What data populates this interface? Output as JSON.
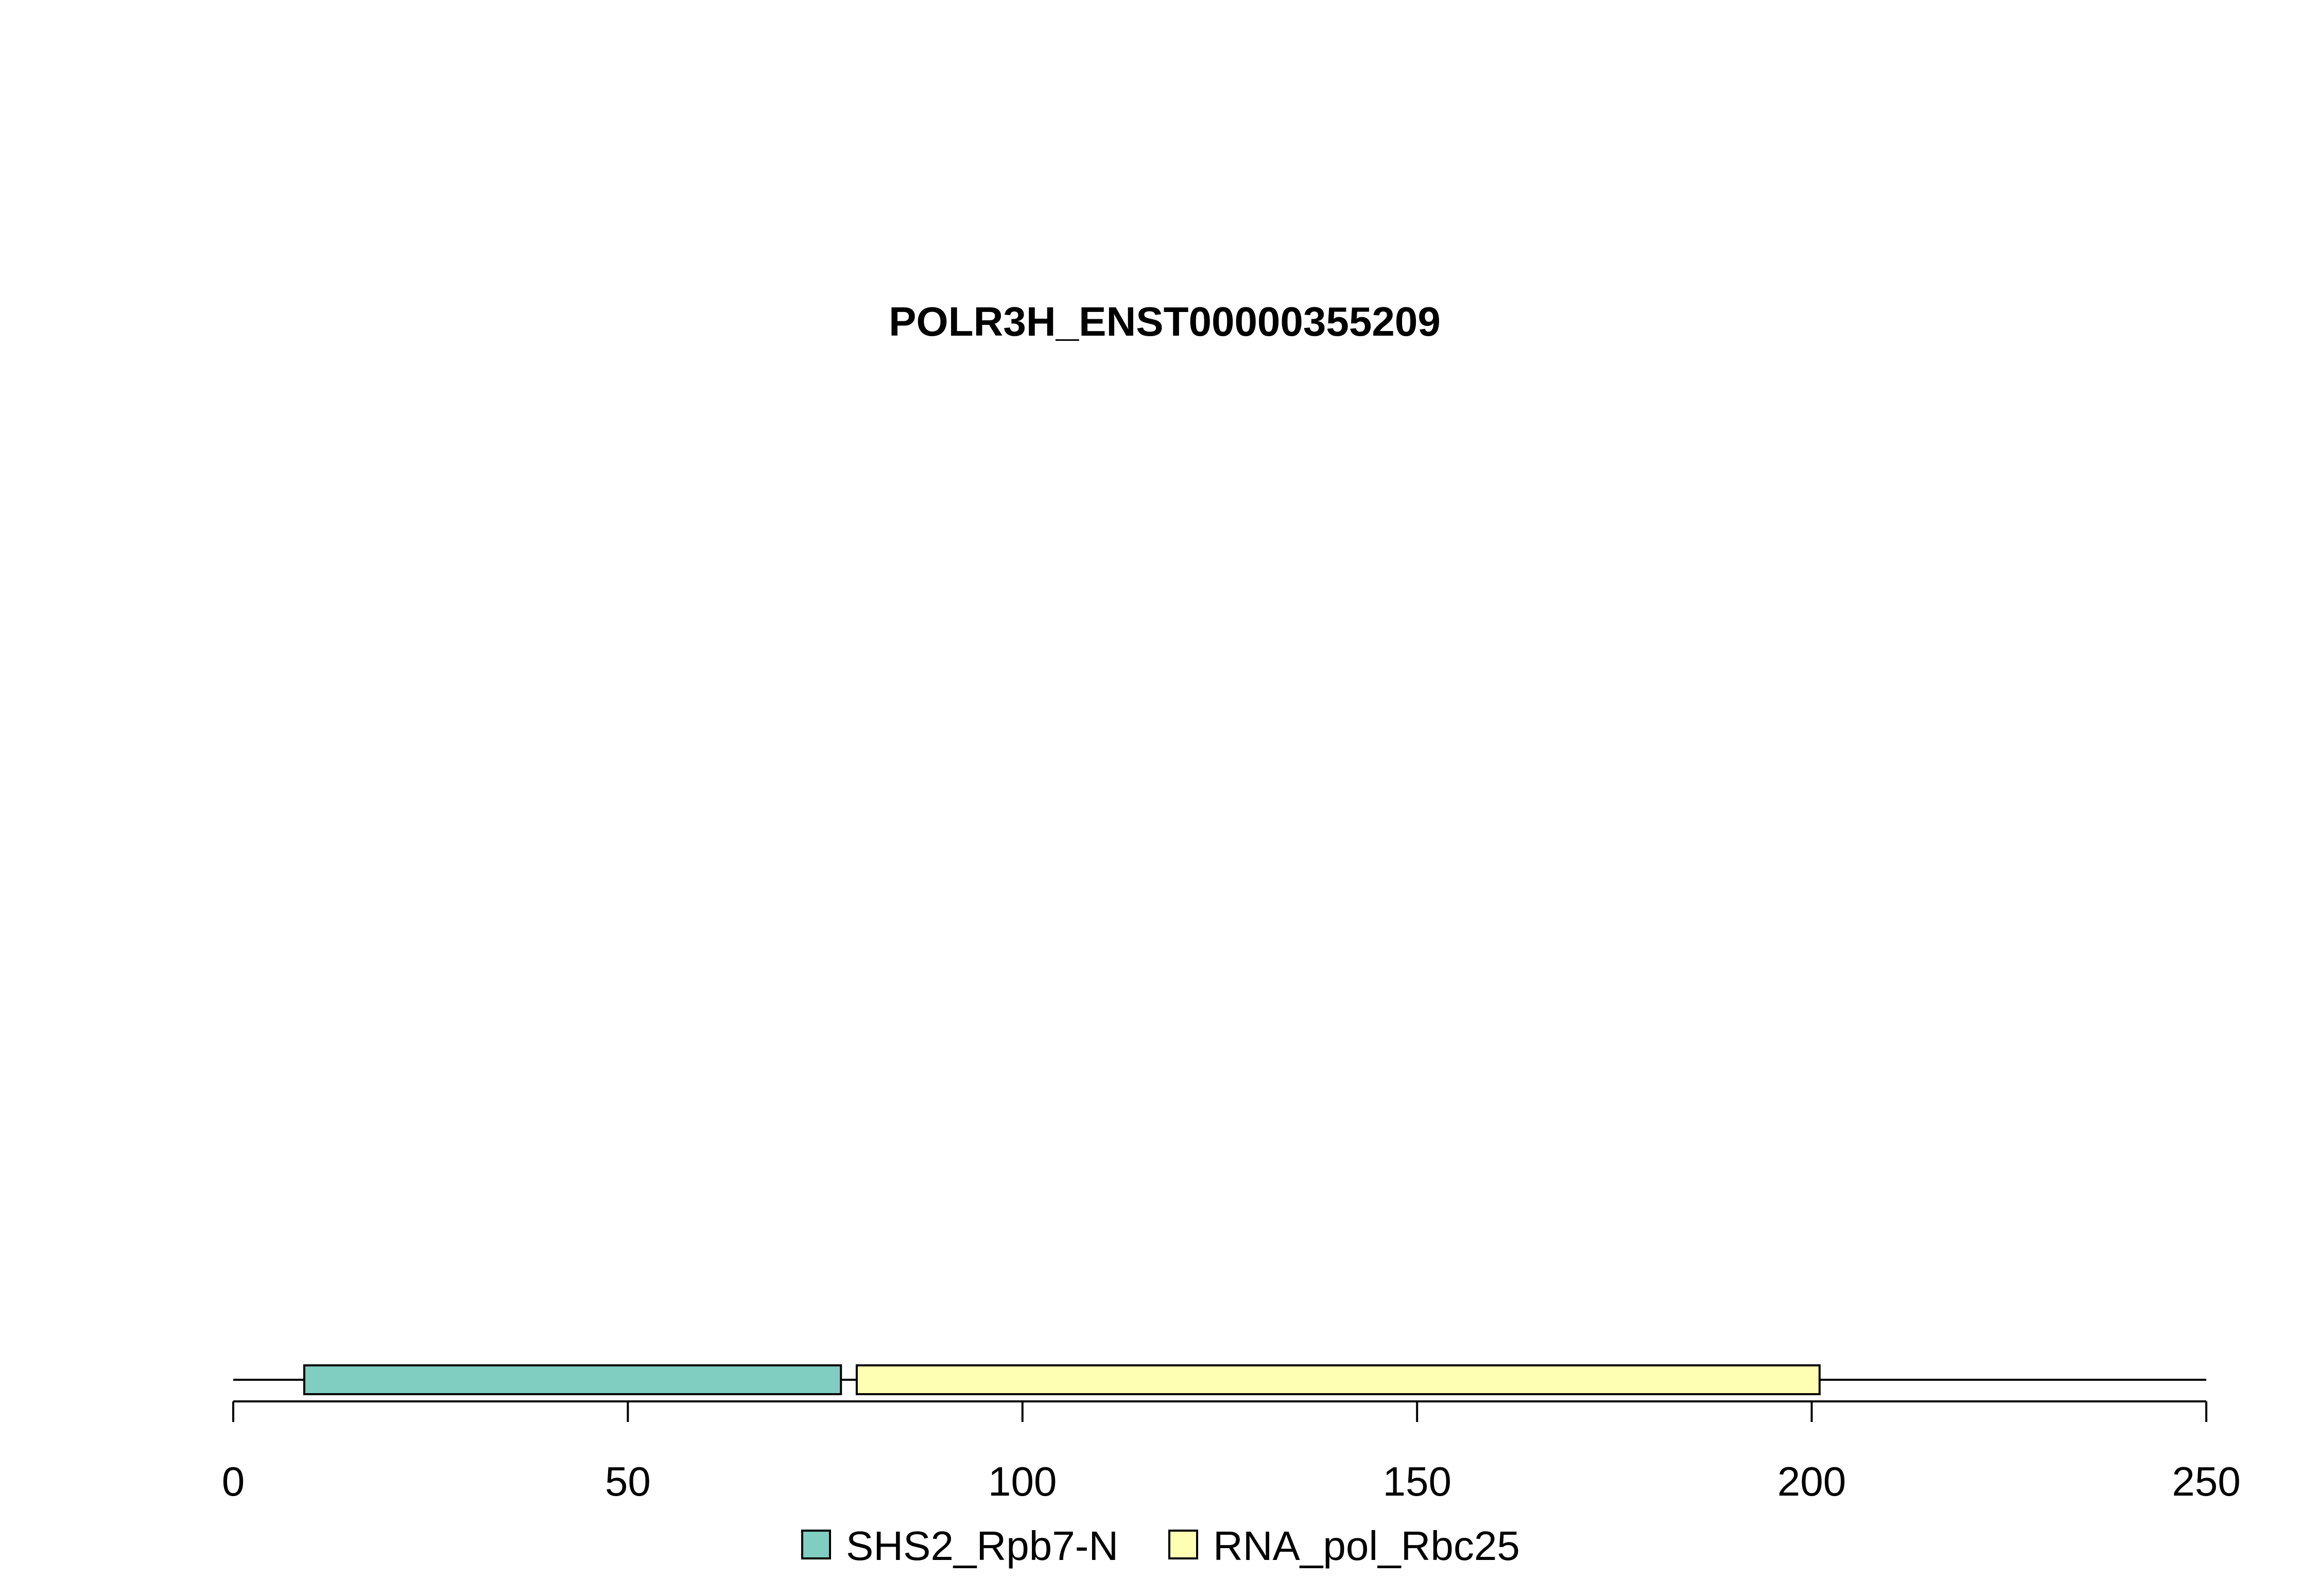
{
  "chart_data": {
    "type": "bar",
    "title": "POLR3H_ENST00000355209",
    "xlabel": "",
    "ylabel": "",
    "xlim": [
      0,
      250
    ],
    "protein_length": 250,
    "domains": [
      {
        "name": "SHS2_Rpb7-N",
        "start": 9,
        "end": 77,
        "color": "#80CDC1"
      },
      {
        "name": "RNA_pol_Rbc25",
        "start": 79,
        "end": 201,
        "color": "#FFFFB3"
      }
    ],
    "x_ticks": [
      0,
      50,
      100,
      150,
      200,
      250
    ],
    "x_tick_labels": [
      "0",
      "50",
      "100",
      "150",
      "200",
      "250"
    ],
    "legend": {
      "placement": "bottom",
      "entries": [
        {
          "label": "SHS2_Rpb7-N",
          "color": "#80CDC1"
        },
        {
          "label": "RNA_pol_Rbc25",
          "color": "#FFFFB3"
        }
      ]
    }
  }
}
